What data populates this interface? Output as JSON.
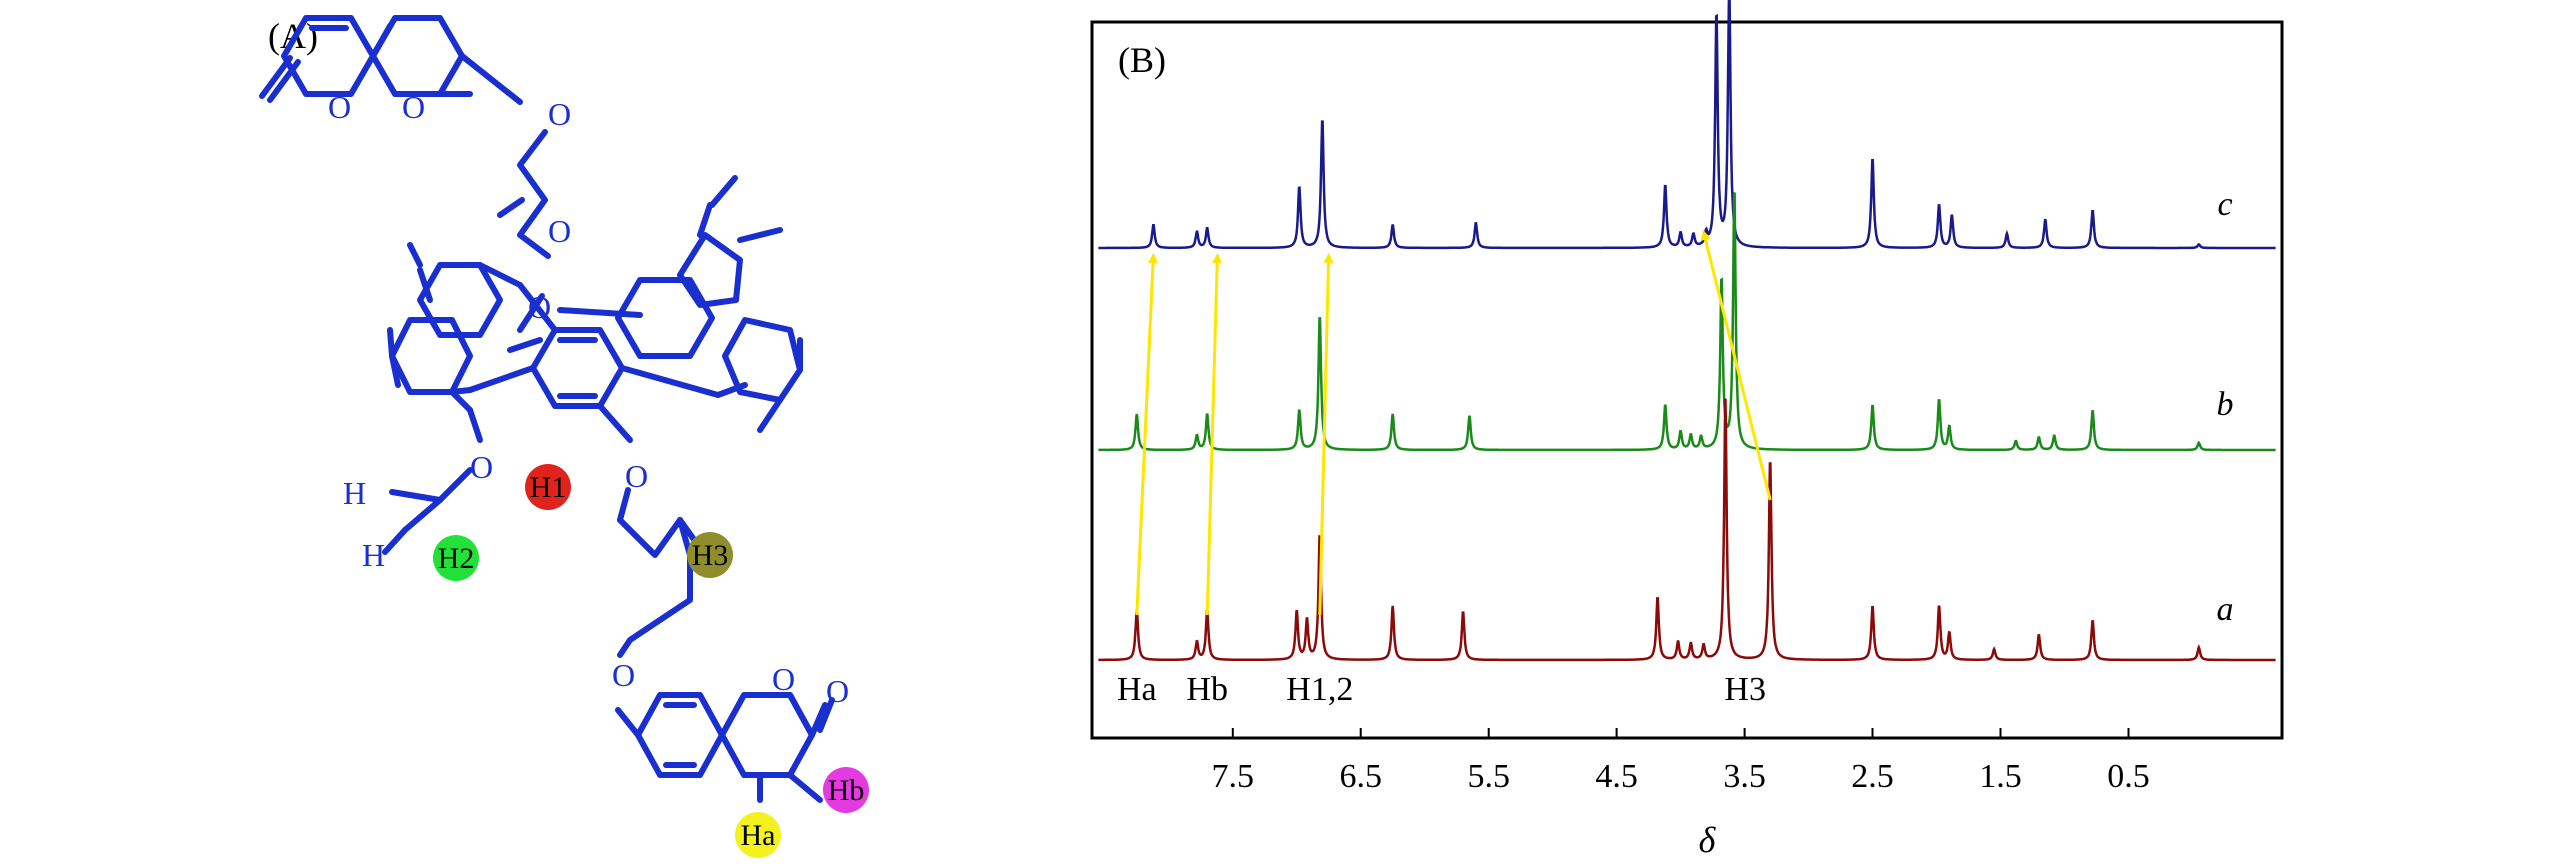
{
  "panel_a": {
    "label": "(A)",
    "structure_color": "#1a2fd0",
    "atoms": {
      "carbonyl_o": "O",
      "ring_o": "O",
      "ether_o": "O",
      "h": "H"
    },
    "markers": [
      {
        "name": "H1",
        "color": "#e0231c"
      },
      {
        "name": "H2",
        "color": "#22e23a"
      },
      {
        "name": "H3",
        "color": "#8f8e2a"
      },
      {
        "name": "Ha",
        "color": "#f3f21e"
      },
      {
        "name": "Hb",
        "color": "#e43be0"
      }
    ]
  },
  "panel_b": {
    "label": "(B)",
    "arrow_color": "#ffe600"
  },
  "chart_data": {
    "type": "line",
    "title": "",
    "xlabel": "δ",
    "ylabel": "",
    "xlim": [
      8.6,
      -0.7
    ],
    "x_reversed": true,
    "x_ticks": [
      7.5,
      6.5,
      5.5,
      4.5,
      3.5,
      2.5,
      1.5,
      0.5
    ],
    "x_tick_labels": [
      "7.5",
      "6.5",
      "5.5",
      "4.5",
      "3.5",
      "2.5",
      "1.5",
      "0.5"
    ],
    "grid": false,
    "series": [
      {
        "name": "c",
        "color": "#1a1a8c",
        "peaks": [
          {
            "x": 8.12,
            "h": 0.13
          },
          {
            "x": 7.78,
            "h": 0.09
          },
          {
            "x": 7.7,
            "h": 0.11
          },
          {
            "x": 6.98,
            "h": 0.34
          },
          {
            "x": 6.8,
            "h": 0.72
          },
          {
            "x": 6.25,
            "h": 0.13
          },
          {
            "x": 5.6,
            "h": 0.14
          },
          {
            "x": 4.12,
            "h": 0.35
          },
          {
            "x": 4.0,
            "h": 0.08
          },
          {
            "x": 3.9,
            "h": 0.07
          },
          {
            "x": 3.8,
            "h": 0.07
          },
          {
            "x": 3.72,
            "h": 1.3
          },
          {
            "x": 3.62,
            "h": 1.45
          },
          {
            "x": 2.5,
            "h": 0.5
          },
          {
            "x": 1.98,
            "h": 0.24
          },
          {
            "x": 1.88,
            "h": 0.18
          },
          {
            "x": 1.45,
            "h": 0.08
          },
          {
            "x": 1.15,
            "h": 0.16
          },
          {
            "x": 0.78,
            "h": 0.21
          },
          {
            "x": -0.05,
            "h": 0.02
          }
        ]
      },
      {
        "name": "b",
        "color": "#1a8a1a",
        "peaks": [
          {
            "x": 8.25,
            "h": 0.2
          },
          {
            "x": 7.78,
            "h": 0.08
          },
          {
            "x": 7.7,
            "h": 0.2
          },
          {
            "x": 6.98,
            "h": 0.22
          },
          {
            "x": 6.82,
            "h": 0.75
          },
          {
            "x": 6.25,
            "h": 0.2
          },
          {
            "x": 5.65,
            "h": 0.19
          },
          {
            "x": 4.12,
            "h": 0.25
          },
          {
            "x": 4.0,
            "h": 0.1
          },
          {
            "x": 3.92,
            "h": 0.08
          },
          {
            "x": 3.84,
            "h": 0.07
          },
          {
            "x": 3.68,
            "h": 0.95
          },
          {
            "x": 3.58,
            "h": 1.45
          },
          {
            "x": 2.5,
            "h": 0.25
          },
          {
            "x": 1.98,
            "h": 0.28
          },
          {
            "x": 1.9,
            "h": 0.13
          },
          {
            "x": 1.38,
            "h": 0.05
          },
          {
            "x": 1.2,
            "h": 0.07
          },
          {
            "x": 1.08,
            "h": 0.08
          },
          {
            "x": 0.78,
            "h": 0.22
          },
          {
            "x": -0.05,
            "h": 0.04
          }
        ]
      },
      {
        "name": "a",
        "color": "#8b0a0a",
        "peaks": [
          {
            "x": 8.25,
            "h": 0.28
          },
          {
            "x": 7.78,
            "h": 0.1
          },
          {
            "x": 7.7,
            "h": 0.28
          },
          {
            "x": 7.0,
            "h": 0.27
          },
          {
            "x": 6.92,
            "h": 0.22
          },
          {
            "x": 6.82,
            "h": 0.7
          },
          {
            "x": 6.25,
            "h": 0.3
          },
          {
            "x": 5.7,
            "h": 0.27
          },
          {
            "x": 4.18,
            "h": 0.35
          },
          {
            "x": 4.02,
            "h": 0.1
          },
          {
            "x": 3.92,
            "h": 0.09
          },
          {
            "x": 3.82,
            "h": 0.08
          },
          {
            "x": 3.65,
            "h": 1.45
          },
          {
            "x": 3.3,
            "h": 1.12
          },
          {
            "x": 2.5,
            "h": 0.3
          },
          {
            "x": 1.98,
            "h": 0.3
          },
          {
            "x": 1.9,
            "h": 0.15
          },
          {
            "x": 1.55,
            "h": 0.06
          },
          {
            "x": 1.2,
            "h": 0.14
          },
          {
            "x": 0.78,
            "h": 0.22
          },
          {
            "x": -0.05,
            "h": 0.07
          }
        ]
      }
    ],
    "annotations": [
      {
        "text": "Ha",
        "x": 8.25
      },
      {
        "text": "Hb",
        "x": 7.7
      },
      {
        "text": "H1,2",
        "x": 6.82
      },
      {
        "text": "H3",
        "x": 3.3
      }
    ],
    "shift_arrows": [
      {
        "from_series": "a",
        "from_x": 8.25,
        "to_series": "c",
        "to_x": 8.12
      },
      {
        "from_series": "a",
        "from_x": 7.7,
        "to_series": "c",
        "to_x": 7.62
      },
      {
        "from_series": "a",
        "from_x": 6.82,
        "to_series": "c",
        "to_x": 6.75
      },
      {
        "from_series": "a",
        "from_x": 3.3,
        "to_series": "c",
        "to_x": 3.82
      }
    ]
  }
}
